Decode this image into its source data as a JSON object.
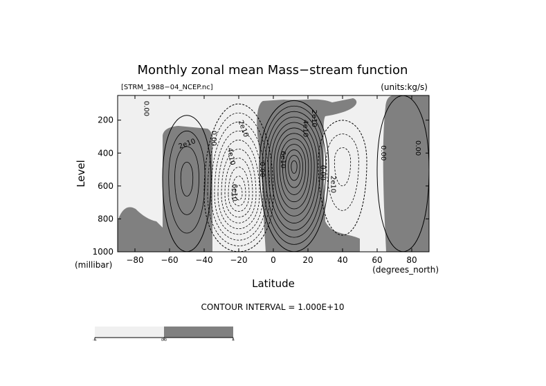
{
  "chart_data": {
    "type": "contour",
    "title": "Monthly zonal mean Mass−stream function",
    "file_label": "[STRM_1988−04_NCEP.nc]",
    "units_label": "(units:kg/s)",
    "xlabel": "Latitude",
    "ylabel": "Level",
    "x_unit_label": "(degrees_north)",
    "y_unit_label": "(millibar)",
    "xlim": [
      -90,
      90
    ],
    "ylim": [
      1000,
      50
    ],
    "x_ticks": [
      {
        "value": -80,
        "label": "−80"
      },
      {
        "value": -60,
        "label": "−60"
      },
      {
        "value": -40,
        "label": "−40"
      },
      {
        "value": -20,
        "label": "−20"
      },
      {
        "value": 0,
        "label": "0"
      },
      {
        "value": 20,
        "label": "20"
      },
      {
        "value": 40,
        "label": "40"
      },
      {
        "value": 60,
        "label": "60"
      },
      {
        "value": 80,
        "label": "80"
      }
    ],
    "y_ticks": [
      {
        "value": 200,
        "label": "200"
      },
      {
        "value": 400,
        "label": "400"
      },
      {
        "value": 600,
        "label": "600"
      },
      {
        "value": 800,
        "label": "800"
      },
      {
        "value": 1000,
        "label": "1000"
      }
    ],
    "contour_interval_text": "CONTOUR INTERVAL = 1.000E+10",
    "contour_interval": 10000000000.0,
    "shade_threshold": 0,
    "colors": {
      "negative": "#f0f0f0",
      "positive": "#808080"
    },
    "colorbar": {
      "labels": [
        "-∞",
        "0.0",
        "∞"
      ]
    },
    "cells": [
      {
        "name": "southern-polar-cell",
        "center": [
          -50,
          550
        ],
        "extent_lat": [
          -64,
          -36
        ],
        "extent_p": [
          170,
          1000
        ],
        "peak": 40000000000.0
      },
      {
        "name": "southern-hadley-cell",
        "center": [
          -20,
          650
        ],
        "extent_lat": [
          -38,
          2
        ],
        "extent_p": [
          100,
          1000
        ],
        "peak": -100000000000.0
      },
      {
        "name": "northern-hadley-cell",
        "center": [
          12,
          480
        ],
        "extent_lat": [
          -8,
          32
        ],
        "extent_p": [
          80,
          1000
        ],
        "peak": 120000000000.0
      },
      {
        "name": "northern-ferrel-cell",
        "center": [
          40,
          450
        ],
        "extent_lat": [
          28,
          56
        ],
        "extent_p": [
          200,
          900
        ],
        "peak": -30000000000.0
      },
      {
        "name": "northern-polar-cell",
        "center": [
          75,
          500
        ],
        "extent_lat": [
          60,
          90
        ],
        "extent_p": [
          50,
          1000
        ],
        "peak": 10000000000.0
      }
    ],
    "contour_labels": [
      {
        "text": "0.00",
        "lat": -73,
        "p": 130,
        "rot": 90
      },
      {
        "text": "2e10",
        "lat": -50,
        "p": 340,
        "rot": -20
      },
      {
        "text": "0.00",
        "lat": -34,
        "p": 310,
        "rot": 90
      },
      {
        "text": "2e10",
        "lat": -17,
        "p": 250,
        "rot": 70
      },
      {
        "text": "4e10",
        "lat": -24,
        "p": 420,
        "rot": 80
      },
      {
        "text": "6e10",
        "lat": -22,
        "p": 640,
        "rot": 90
      },
      {
        "text": "0.00",
        "lat": -6,
        "p": 500,
        "rot": 90
      },
      {
        "text": "2e10",
        "lat": 24,
        "p": 190,
        "rot": 90
      },
      {
        "text": "4e10",
        "lat": 19,
        "p": 250,
        "rot": 90
      },
      {
        "text": "6e10",
        "lat": 6,
        "p": 440,
        "rot": 90
      },
      {
        "text": "0.00",
        "lat": 29,
        "p": 520,
        "rot": 90
      },
      {
        "text": "2e10",
        "lat": 35,
        "p": 590,
        "rot": 90
      },
      {
        "text": "0.00",
        "lat": 64,
        "p": 400,
        "rot": 90
      },
      {
        "text": "0.00",
        "lat": 84,
        "p": 370,
        "rot": 90
      }
    ]
  }
}
